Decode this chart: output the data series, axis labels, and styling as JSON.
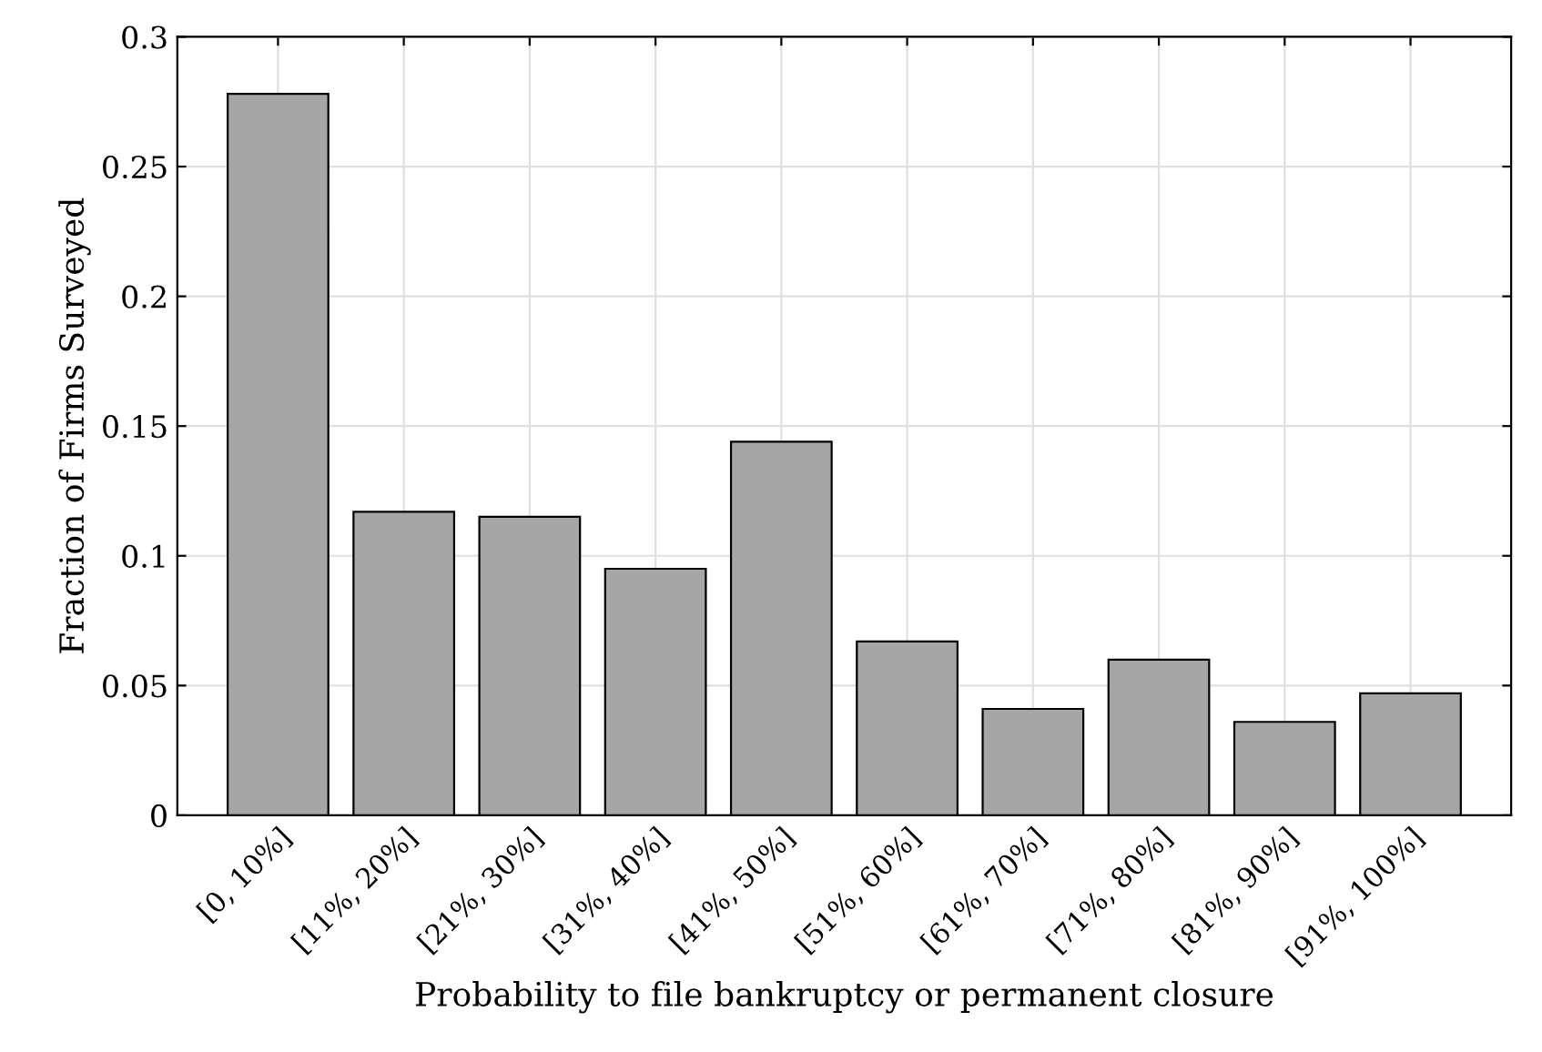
{
  "chart_data": {
    "type": "bar",
    "xlabel": "Probability to file bankruptcy or permanent closure",
    "ylabel": "Fraction of Firms Surveyed",
    "categories": [
      "[0, 10%]",
      "[11%, 20%]",
      "[21%, 30%]",
      "[31%, 40%]",
      "[41%, 50%]",
      "[51%, 60%]",
      "[61%, 70%]",
      "[71%, 80%]",
      "[81%, 90%]",
      "[91%, 100%]"
    ],
    "values": [
      0.278,
      0.117,
      0.115,
      0.095,
      0.144,
      0.067,
      0.041,
      0.06,
      0.036,
      0.047
    ],
    "color": "#a6a6a6",
    "ylim": [
      0,
      0.3
    ],
    "yticks": [
      0,
      0.05,
      0.1,
      0.15,
      0.2,
      0.25,
      0.3
    ],
    "grid": true
  }
}
